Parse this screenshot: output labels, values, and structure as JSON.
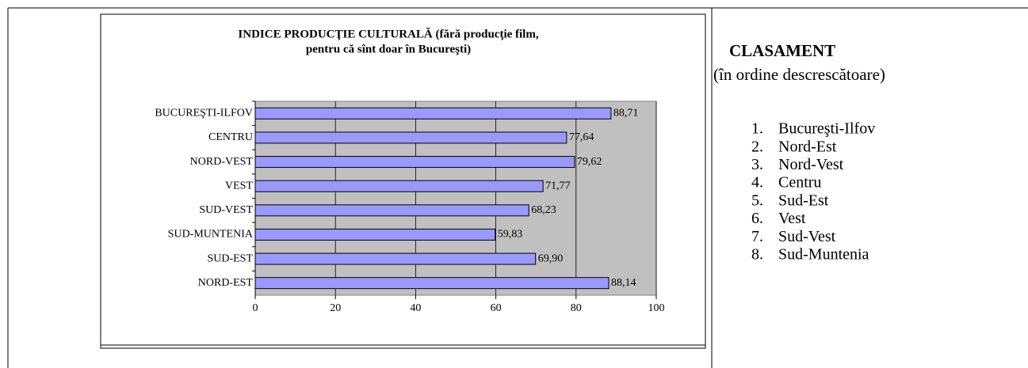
{
  "chart_data": {
    "type": "bar",
    "orientation": "horizontal",
    "title": [
      "INDICE PRODUCŢIE CULTURALĂ  (fără producţie film,",
      "pentru că sînt doar în Bucureşti)"
    ],
    "categories": [
      "BUCUREŞTI-ILFOV",
      "CENTRU",
      "NORD-VEST",
      "VEST",
      "SUD-VEST",
      "SUD-MUNTENIA",
      "SUD-EST",
      "NORD-EST"
    ],
    "values": [
      88.71,
      77.64,
      79.62,
      71.77,
      68.23,
      59.83,
      69.9,
      88.14
    ],
    "value_labels": [
      "88,71",
      "77,64",
      "79,62",
      "71,77",
      "68,23",
      "59,83",
      "69,90",
      "88,14"
    ],
    "color": "#9999ff",
    "xlim": [
      0,
      100
    ],
    "xticks": [
      0,
      20,
      40,
      60,
      80,
      100
    ],
    "grid": true
  },
  "ranking": {
    "heading": "CLASAMENT",
    "subheading": "(în ordine descrescătoare)",
    "items": [
      {
        "number": "1.",
        "text": "Bucureşti-Ilfov"
      },
      {
        "number": "2.",
        "text": "Nord-Est"
      },
      {
        "number": "3.",
        "text": "Nord-Vest"
      },
      {
        "number": "4.",
        "text": "Centru"
      },
      {
        "number": "5.",
        "text": "Sud-Est"
      },
      {
        "number": "6.",
        "text": "Vest"
      },
      {
        "number": "7.",
        "text": "Sud-Vest"
      },
      {
        "number": "8.",
        "text": "Sud-Muntenia"
      }
    ]
  }
}
